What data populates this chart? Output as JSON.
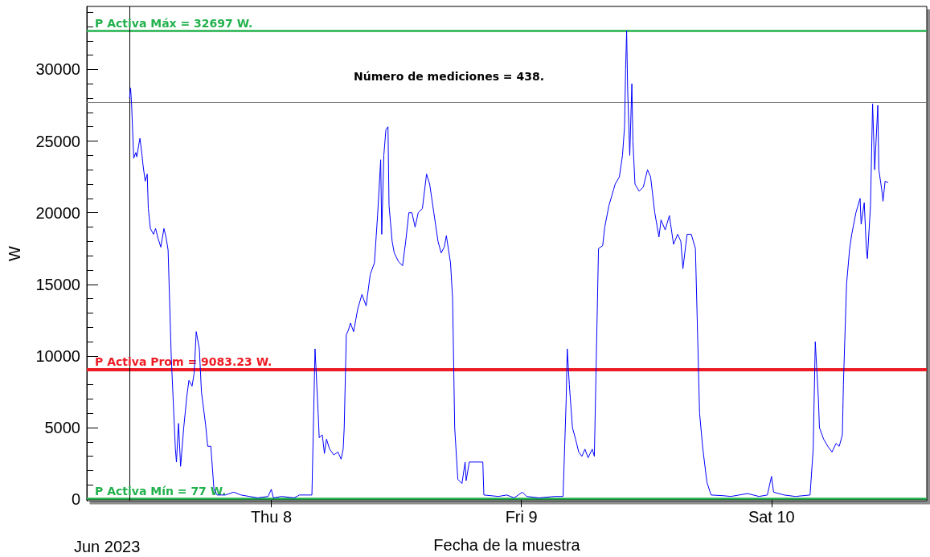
{
  "chart_data": {
    "type": "line",
    "xlabel": "Fecha de la muestra",
    "ylabel": "W",
    "annotations": [
      "Número de mediciones = 438.",
      "Jun 2023"
    ],
    "xlim": [
      "2023-06-07T06:18",
      "2023-06-10T14:54"
    ],
    "xticks": [
      {
        "value": "2023-06-08",
        "label": "Thu 8"
      },
      {
        "value": "2023-06-09",
        "label": "Fri 9"
      },
      {
        "value": "2023-06-10",
        "label": "Sat 10"
      }
    ],
    "ylim": [
      -100,
      34400
    ],
    "yticks": [
      0,
      5000,
      10000,
      15000,
      20000,
      25000,
      30000
    ],
    "grid": false,
    "marker": "none",
    "line_style": "solid",
    "ref_lines": [
      {
        "axis": "y",
        "value": 32697,
        "label": "P Activa Máx = 32697 W.",
        "color": "#22b14c"
      },
      {
        "axis": "y",
        "value": 9083.23,
        "label": "P Activa Prom = 9083.23 W.",
        "color": "#ed1c24"
      },
      {
        "axis": "y",
        "value": 77,
        "label": "P Activa Mín = 77 W.",
        "color": "#22b14c"
      },
      {
        "axis": "y",
        "value": 27700,
        "label": null,
        "color": "#808080"
      },
      {
        "axis": "x",
        "value": "2023-06-07T10:24",
        "label": null,
        "color": "#000000"
      }
    ],
    "series": [
      {
        "color": "#0000ff",
        "x": [
          "2023-06-07T10:24",
          "2023-06-07T10:30",
          "2023-06-07T10:36",
          "2023-06-07T10:48",
          "2023-06-07T11:00",
          "2023-06-07T11:06",
          "2023-06-07T11:18",
          "2023-06-07T11:24",
          "2023-06-07T11:36",
          "2023-06-07T11:42",
          "2023-06-07T11:54",
          "2023-06-07T12:06",
          "2023-06-07T12:12",
          "2023-06-07T12:24",
          "2023-06-07T12:42",
          "2023-06-07T12:54",
          "2023-06-07T13:06",
          "2023-06-07T13:24",
          "2023-06-07T13:42",
          "2023-06-07T13:54",
          "2023-06-07T14:06",
          "2023-06-07T14:24",
          "2023-06-07T14:48",
          "2023-06-07T14:54",
          "2023-06-07T15:06",
          "2023-06-07T15:18",
          "2023-06-07T15:36",
          "2023-06-07T15:54",
          "2023-06-07T16:06",
          "2023-06-07T16:24",
          "2023-06-07T16:36",
          "2023-06-07T16:48",
          "2023-06-07T17:06",
          "2023-06-07T17:18",
          "2023-06-07T17:42",
          "2023-06-07T17:54",
          "2023-06-07T18:12",
          "2023-06-07T18:30",
          "2023-06-07T18:48",
          "2023-06-07T19:36",
          "2023-06-07T20:24",
          "2023-06-07T21:06",
          "2023-06-07T21:54",
          "2023-06-07T22:42",
          "2023-06-07T23:42",
          "2023-06-08T00:00",
          "2023-06-08T00:12",
          "2023-06-08T01:00",
          "2023-06-08T02:12",
          "2023-06-08T02:42",
          "2023-06-08T03:54",
          "2023-06-08T04:12",
          "2023-06-08T04:30",
          "2023-06-08T04:36",
          "2023-06-08T04:54",
          "2023-06-08T05:06",
          "2023-06-08T05:18",
          "2023-06-08T05:36",
          "2023-06-08T06:00",
          "2023-06-08T06:24",
          "2023-06-08T06:42",
          "2023-06-08T06:54",
          "2023-06-08T07:00",
          "2023-06-08T07:12",
          "2023-06-08T07:24",
          "2023-06-08T07:36",
          "2023-06-08T07:54",
          "2023-06-08T08:18",
          "2023-06-08T08:42",
          "2023-06-08T09:06",
          "2023-06-08T09:30",
          "2023-06-08T09:54",
          "2023-06-08T10:12",
          "2023-06-08T10:30",
          "2023-06-08T10:36",
          "2023-06-08T10:48",
          "2023-06-08T11:00",
          "2023-06-08T11:12",
          "2023-06-08T11:18",
          "2023-06-08T11:36",
          "2023-06-08T11:48",
          "2023-06-08T12:12",
          "2023-06-08T12:36",
          "2023-06-08T12:54",
          "2023-06-08T13:12",
          "2023-06-08T13:30",
          "2023-06-08T13:48",
          "2023-06-08T14:06",
          "2023-06-08T14:30",
          "2023-06-08T14:54",
          "2023-06-08T15:12",
          "2023-06-08T15:36",
          "2023-06-08T16:00",
          "2023-06-08T16:18",
          "2023-06-08T16:36",
          "2023-06-08T16:48",
          "2023-06-08T17:12",
          "2023-06-08T17:24",
          "2023-06-08T17:36",
          "2023-06-08T17:54",
          "2023-06-08T18:18",
          "2023-06-08T18:36",
          "2023-06-08T18:42",
          "2023-06-08T19:00",
          "2023-06-08T20:18",
          "2023-06-08T20:24",
          "2023-06-08T21:48",
          "2023-06-08T22:36",
          "2023-06-08T23:18",
          "2023-06-09T00:06",
          "2023-06-09T00:30",
          "2023-06-09T01:42",
          "2023-06-09T03:12",
          "2023-06-09T04:00",
          "2023-06-09T04:18",
          "2023-06-09T04:24",
          "2023-06-09T04:36",
          "2023-06-09T04:54",
          "2023-06-09T05:12",
          "2023-06-09T05:30",
          "2023-06-09T05:48",
          "2023-06-09T06:06",
          "2023-06-09T06:24",
          "2023-06-09T06:48",
          "2023-06-09T07:00",
          "2023-06-09T07:24",
          "2023-06-09T07:48",
          "2023-06-09T08:00",
          "2023-06-09T08:24",
          "2023-06-09T09:00",
          "2023-06-09T09:24",
          "2023-06-09T09:42",
          "2023-06-09T09:54",
          "2023-06-09T10:00",
          "2023-06-09T10:06",
          "2023-06-09T10:12",
          "2023-06-09T10:24",
          "2023-06-09T10:36",
          "2023-06-09T10:42",
          "2023-06-09T10:54",
          "2023-06-09T11:18",
          "2023-06-09T11:42",
          "2023-06-09T12:06",
          "2023-06-09T12:24",
          "2023-06-09T12:48",
          "2023-06-09T13:12",
          "2023-06-09T13:24",
          "2023-06-09T13:48",
          "2023-06-09T14:12",
          "2023-06-09T14:36",
          "2023-06-09T15:00",
          "2023-06-09T15:18",
          "2023-06-09T15:30",
          "2023-06-09T15:54",
          "2023-06-09T16:18",
          "2023-06-09T16:42",
          "2023-06-09T17:06",
          "2023-06-09T17:24",
          "2023-06-09T17:48",
          "2023-06-09T18:12",
          "2023-06-09T19:24",
          "2023-06-09T20:06",
          "2023-06-09T20:54",
          "2023-06-09T21:42",
          "2023-06-09T22:48",
          "2023-06-09T23:36",
          "2023-06-10T00:00",
          "2023-06-10T00:12",
          "2023-06-10T01:12",
          "2023-06-10T02:18",
          "2023-06-10T03:42",
          "2023-06-10T04:00",
          "2023-06-10T04:12",
          "2023-06-10T04:30",
          "2023-06-10T04:36",
          "2023-06-10T05:00",
          "2023-06-10T05:24",
          "2023-06-10T05:48",
          "2023-06-10T06:12",
          "2023-06-10T06:30",
          "2023-06-10T06:48",
          "2023-06-10T06:54",
          "2023-06-10T07:12",
          "2023-06-10T07:30",
          "2023-06-10T07:42",
          "2023-06-10T08:06",
          "2023-06-10T08:30",
          "2023-06-10T08:36",
          "2023-06-10T08:54",
          "2023-06-10T09:06",
          "2023-06-10T09:12",
          "2023-06-10T09:30",
          "2023-06-10T09:42",
          "2023-06-10T09:54",
          "2023-06-10T10:12",
          "2023-06-10T10:18",
          "2023-06-10T10:36",
          "2023-06-10T10:42",
          "2023-06-10T10:54",
          "2023-06-10T11:12"
        ],
        "values": [
          28000,
          28700,
          27500,
          23800,
          24200,
          23900,
          24800,
          25200,
          24000,
          23300,
          22200,
          22700,
          20300,
          18900,
          18500,
          18900,
          18300,
          17600,
          18900,
          18300,
          17400,
          10000,
          3500,
          2600,
          5300,
          2300,
          5000,
          7200,
          8300,
          7900,
          8800,
          11700,
          10500,
          7500,
          5200,
          3700,
          3700,
          700,
          300,
          300,
          500,
          300,
          200,
          100,
          200,
          700,
          100,
          200,
          100,
          300,
          300,
          10500,
          6000,
          4300,
          4500,
          3200,
          4200,
          3500,
          3100,
          3300,
          2800,
          3500,
          5000,
          11500,
          11800,
          12300,
          11700,
          13300,
          14300,
          13500,
          15700,
          16500,
          19800,
          23700,
          18500,
          24000,
          25800,
          26000,
          20500,
          18000,
          17200,
          16600,
          16300,
          18000,
          20000,
          20000,
          19000,
          20000,
          20300,
          22700,
          22000,
          20000,
          18000,
          17200,
          17600,
          18400,
          16500,
          14000,
          5000,
          1400,
          1100,
          2600,
          1300,
          2600,
          2600,
          300,
          200,
          300,
          100,
          500,
          200,
          100,
          200,
          200,
          7000,
          10500,
          8000,
          5000,
          4200,
          3300,
          3000,
          3500,
          2900,
          3500,
          3000,
          17500,
          17700,
          19000,
          20500,
          22000,
          22500,
          24000,
          26000,
          30000,
          32700,
          28500,
          24000,
          29000,
          25000,
          22000,
          21500,
          21800,
          23000,
          22500,
          20000,
          18300,
          19500,
          18800,
          19800,
          17800,
          18500,
          18000,
          16100,
          18500,
          18500,
          17500,
          6000,
          3600,
          1200,
          300,
          250,
          200,
          300,
          400,
          200,
          300,
          1600,
          500,
          300,
          200,
          300,
          3500,
          11000,
          7000,
          5000,
          4200,
          3700,
          3300,
          3900,
          3700,
          4500,
          8000,
          15000,
          17500,
          18500,
          20000,
          21000,
          19200,
          20700,
          17500,
          16800,
          20500,
          27600,
          23000,
          27500,
          23000,
          21500,
          20800,
          22200,
          22100
        ]
      }
    ]
  }
}
